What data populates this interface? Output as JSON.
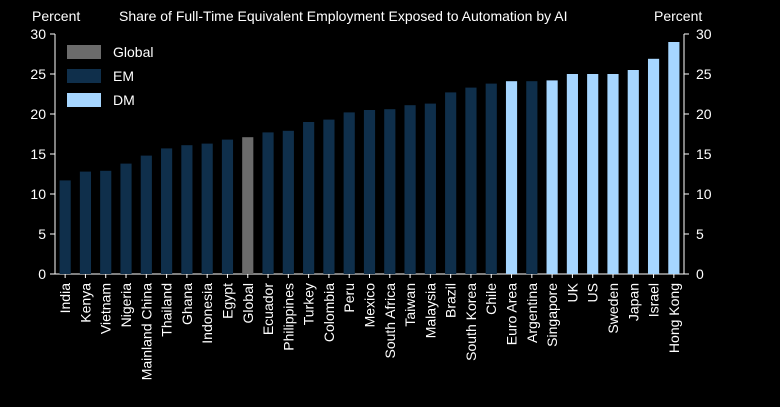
{
  "chart_data": {
    "type": "bar",
    "title": "Share of Full-Time Equivalent Employment Exposed to Automation by AI",
    "ylabel_left": "Percent",
    "ylabel_right": "Percent",
    "ylim": [
      0,
      30
    ],
    "yticks": [
      0,
      5,
      10,
      15,
      20,
      25,
      30
    ],
    "legend": [
      {
        "name": "Global",
        "color": "#6b6b6b"
      },
      {
        "name": "EM",
        "color": "#0f2f4b"
      },
      {
        "name": "DM",
        "color": "#a6d6ff"
      }
    ],
    "categories": [
      "India",
      "Kenya",
      "Vietnam",
      "Nigeria",
      "Mainland China",
      "Thailand",
      "Ghana",
      "Indonesia",
      "Egypt",
      "Global",
      "Ecuador",
      "Philippines",
      "Turkey",
      "Colombia",
      "Peru",
      "Mexico",
      "South Africa",
      "Taiwan",
      "Malaysia",
      "Brazil",
      "South Korea",
      "Chile",
      "Euro Area",
      "Argentina",
      "Singapore",
      "UK",
      "US",
      "Sweden",
      "Japan",
      "Israel",
      "Hong Kong"
    ],
    "values": [
      11.7,
      12.8,
      12.9,
      13.8,
      14.8,
      15.7,
      16.1,
      16.3,
      16.8,
      17.1,
      17.7,
      17.9,
      19.0,
      19.3,
      20.2,
      20.5,
      20.6,
      21.1,
      21.3,
      22.7,
      23.3,
      23.8,
      24.1,
      24.1,
      24.2,
      25.0,
      25.0,
      25.0,
      25.5,
      26.9,
      29.0
    ],
    "groups": [
      "EM",
      "EM",
      "EM",
      "EM",
      "EM",
      "EM",
      "EM",
      "EM",
      "EM",
      "Global",
      "EM",
      "EM",
      "EM",
      "EM",
      "EM",
      "EM",
      "EM",
      "EM",
      "EM",
      "EM",
      "EM",
      "EM",
      "DM",
      "EM",
      "DM",
      "DM",
      "DM",
      "DM",
      "DM",
      "DM",
      "DM"
    ]
  }
}
